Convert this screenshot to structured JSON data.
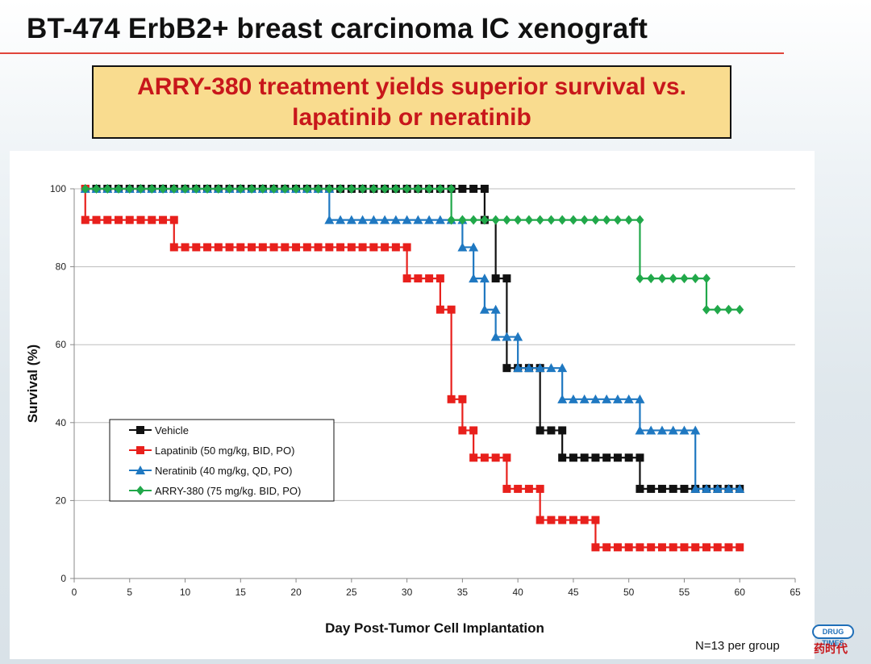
{
  "slide": {
    "title": "BT-474 ErbB2+ breast carcinoma IC xenograft",
    "headline_line1": "ARRY-380 treatment yields superior survival vs.",
    "headline_line2": "lapatinib or neratinib",
    "footnote": "N=13 per group",
    "watermark_badge": "DRUG TIMES",
    "watermark_cn": "药时代"
  },
  "colors": {
    "title_rule": "#e0453a",
    "headline_bg": "#f9dc8f",
    "headline_text": "#c8171b"
  },
  "chart_data": {
    "type": "line",
    "subtype": "step (Kaplan-Meier survival)",
    "xlabel": "Day Post-Tumor Cell Implantation",
    "ylabel": "Survival (%)",
    "xlim": [
      0,
      65
    ],
    "ylim": [
      0,
      100
    ],
    "xticks": [
      0,
      5,
      10,
      15,
      20,
      25,
      30,
      35,
      40,
      45,
      50,
      55,
      60,
      65
    ],
    "yticks": [
      0,
      20,
      40,
      60,
      80,
      100
    ],
    "grid": "horizontal",
    "legend_position": "lower-left",
    "series": [
      {
        "name": "Vehicle",
        "color": "#111111",
        "marker": "square",
        "steps": [
          [
            1,
            100
          ],
          [
            37,
            92
          ],
          [
            38,
            77
          ],
          [
            39,
            54
          ],
          [
            42,
            38
          ],
          [
            44,
            31
          ],
          [
            51,
            23
          ],
          [
            60,
            23
          ]
        ],
        "marker_days": [
          1,
          2,
          3,
          4,
          5,
          6,
          7,
          8,
          9,
          10,
          11,
          12,
          13,
          14,
          15,
          16,
          17,
          18,
          19,
          20,
          21,
          22,
          23,
          24,
          25,
          26,
          27,
          28,
          29,
          30,
          31,
          32,
          33,
          34,
          35,
          36,
          37,
          37,
          38,
          39,
          39,
          40,
          41,
          42,
          42,
          43,
          44,
          44,
          45,
          46,
          47,
          48,
          49,
          50,
          51,
          51,
          52,
          53,
          54,
          55,
          56,
          57,
          58,
          59,
          60
        ]
      },
      {
        "name": "Lapatinib (50 mg/kg, BID, PO)",
        "color": "#e8201c",
        "marker": "square",
        "steps": [
          [
            1,
            100
          ],
          [
            1,
            92
          ],
          [
            9,
            85
          ],
          [
            30,
            77
          ],
          [
            33,
            69
          ],
          [
            34,
            46
          ],
          [
            35,
            38
          ],
          [
            36,
            31
          ],
          [
            39,
            23
          ],
          [
            42,
            15
          ],
          [
            47,
            8
          ],
          [
            60,
            8
          ]
        ],
        "marker_days": [
          1,
          1,
          2,
          3,
          4,
          5,
          6,
          7,
          8,
          9,
          9,
          10,
          11,
          12,
          13,
          14,
          15,
          16,
          17,
          18,
          19,
          20,
          21,
          22,
          23,
          24,
          25,
          26,
          27,
          28,
          29,
          30,
          30,
          31,
          32,
          33,
          33,
          34,
          34,
          35,
          35,
          36,
          36,
          37,
          38,
          39,
          39,
          40,
          41,
          42,
          42,
          43,
          44,
          45,
          46,
          47,
          47,
          48,
          49,
          50,
          51,
          52,
          53,
          54,
          55,
          56,
          57,
          58,
          59,
          60
        ]
      },
      {
        "name": "Neratinib (40 mg/kg, QD, PO)",
        "color": "#1f78c1",
        "marker": "triangle",
        "steps": [
          [
            1,
            100
          ],
          [
            23,
            92
          ],
          [
            35,
            85
          ],
          [
            36,
            77
          ],
          [
            37,
            69
          ],
          [
            38,
            62
          ],
          [
            40,
            54
          ],
          [
            44,
            46
          ],
          [
            51,
            38
          ],
          [
            56,
            23
          ],
          [
            60,
            23
          ]
        ],
        "marker_days": [
          1,
          2,
          3,
          4,
          5,
          6,
          7,
          8,
          9,
          10,
          11,
          12,
          13,
          14,
          15,
          16,
          17,
          18,
          19,
          20,
          21,
          22,
          23,
          23,
          24,
          25,
          26,
          27,
          28,
          29,
          30,
          31,
          32,
          33,
          34,
          35,
          35,
          36,
          36,
          37,
          37,
          38,
          38,
          39,
          40,
          40,
          41,
          42,
          43,
          44,
          44,
          45,
          46,
          47,
          48,
          49,
          50,
          51,
          51,
          52,
          53,
          54,
          55,
          56,
          56,
          57,
          58,
          59,
          60
        ]
      },
      {
        "name": "ARRY-380 (75 mg/kg. BID, PO)",
        "color": "#21a84a",
        "marker": "diamond",
        "steps": [
          [
            1,
            100
          ],
          [
            34,
            92
          ],
          [
            51,
            77
          ],
          [
            57,
            69
          ],
          [
            60,
            69
          ]
        ],
        "marker_days": [
          1,
          2,
          3,
          4,
          5,
          6,
          7,
          8,
          9,
          10,
          11,
          12,
          13,
          14,
          15,
          16,
          17,
          18,
          19,
          20,
          21,
          22,
          23,
          24,
          25,
          26,
          27,
          28,
          29,
          30,
          31,
          32,
          33,
          34,
          34,
          35,
          36,
          37,
          38,
          39,
          40,
          41,
          42,
          43,
          44,
          45,
          46,
          47,
          48,
          49,
          50,
          51,
          51,
          52,
          53,
          54,
          55,
          56,
          57,
          57,
          58,
          59,
          60
        ]
      }
    ]
  }
}
